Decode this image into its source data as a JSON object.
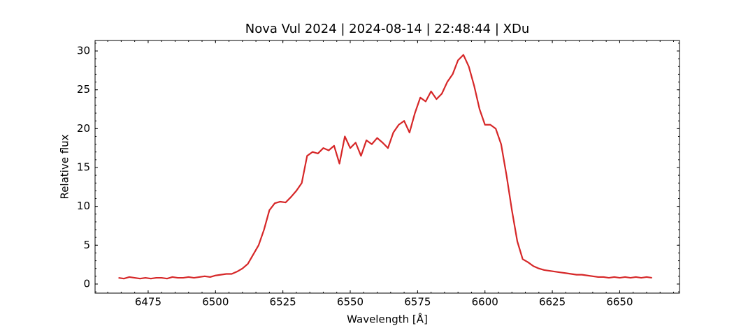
{
  "chart_data": {
    "type": "line",
    "title": "Nova Vul 2024 | 2024-08-14 | 22:48:44 | XDu",
    "x_label": "Wavelength [Å]",
    "y_label": "Relative flux",
    "x": [
      6464,
      6466,
      6468,
      6470,
      6472,
      6474,
      6476,
      6478,
      6480,
      6482,
      6484,
      6486,
      6488,
      6490,
      6492,
      6494,
      6496,
      6498,
      6500,
      6502,
      6504,
      6506,
      6508,
      6510,
      6512,
      6514,
      6516,
      6518,
      6520,
      6522,
      6524,
      6526,
      6528,
      6530,
      6532,
      6534,
      6536,
      6538,
      6540,
      6542,
      6544,
      6546,
      6548,
      6550,
      6552,
      6554,
      6556,
      6558,
      6560,
      6562,
      6564,
      6566,
      6568,
      6570,
      6572,
      6574,
      6576,
      6578,
      6580,
      6582,
      6584,
      6586,
      6588,
      6590,
      6592,
      6594,
      6596,
      6598,
      6600,
      6602,
      6604,
      6606,
      6608,
      6610,
      6612,
      6614,
      6616,
      6618,
      6620,
      6622,
      6624,
      6626,
      6628,
      6630,
      6632,
      6634,
      6636,
      6638,
      6640,
      6642,
      6644,
      6646,
      6648,
      6650,
      6652,
      6654,
      6656,
      6658,
      6660,
      6662
    ],
    "series": [
      {
        "name": "Nova Vul 2024",
        "color": "#d62728",
        "values": [
          0.8,
          0.7,
          0.9,
          0.8,
          0.7,
          0.8,
          0.7,
          0.8,
          0.8,
          0.7,
          0.9,
          0.8,
          0.8,
          0.9,
          0.8,
          0.9,
          1.0,
          0.9,
          1.1,
          1.2,
          1.3,
          1.3,
          1.6,
          2.0,
          2.6,
          3.8,
          5.0,
          7.0,
          9.5,
          10.4,
          10.6,
          10.5,
          11.2,
          12.0,
          13.0,
          16.5,
          17.0,
          16.8,
          17.5,
          17.2,
          17.8,
          15.5,
          19.0,
          17.5,
          18.2,
          16.5,
          18.5,
          18.0,
          18.8,
          18.2,
          17.5,
          19.5,
          20.5,
          21.0,
          19.5,
          22.0,
          24.0,
          23.5,
          24.8,
          23.8,
          24.5,
          26.0,
          27.0,
          28.8,
          29.5,
          28.0,
          25.5,
          22.5,
          20.5,
          20.5,
          20.0,
          18.0,
          14.0,
          9.5,
          5.5,
          3.2,
          2.8,
          2.3,
          2.0,
          1.8,
          1.7,
          1.6,
          1.5,
          1.4,
          1.3,
          1.2,
          1.2,
          1.1,
          1.0,
          0.9,
          0.9,
          0.8,
          0.9,
          0.8,
          0.9,
          0.8,
          0.9,
          0.8,
          0.9,
          0.8
        ]
      }
    ],
    "xlim": [
      6455.3,
      6672.2
    ],
    "ylim": [
      -1.17,
      31.35
    ],
    "xticks": [
      6475,
      6500,
      6525,
      6550,
      6575,
      6600,
      6625,
      6650
    ],
    "yticks": [
      0,
      5,
      10,
      15,
      20,
      25,
      30
    ],
    "grid": false
  }
}
